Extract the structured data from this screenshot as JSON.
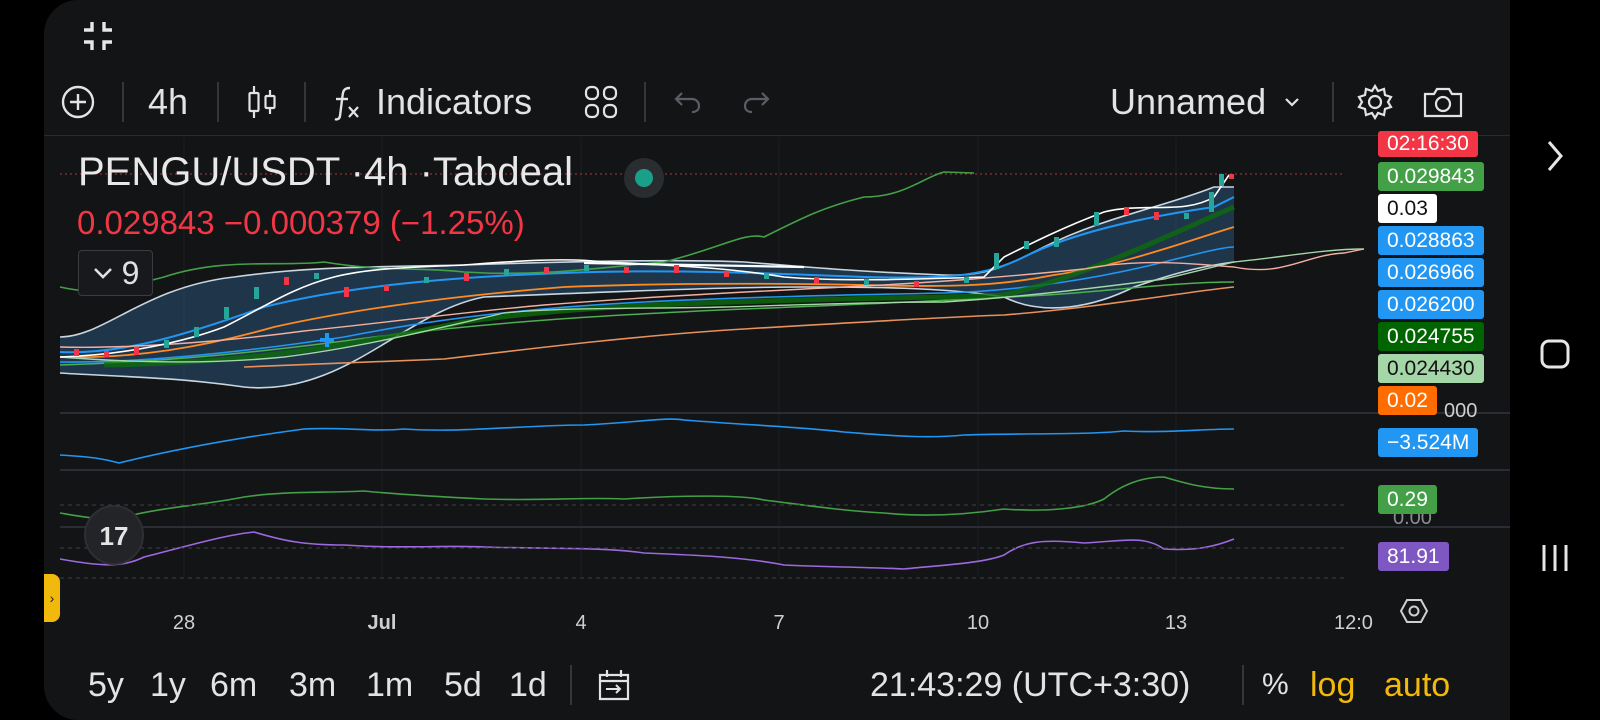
{
  "toolbar": {
    "interval": "4h",
    "indicators_label": "Indicators",
    "layout_name": "Unnamed",
    "colors": {
      "fg": "#e3e3e3",
      "disabled": "#5a5d63"
    }
  },
  "legend": {
    "symbol": "PENGU/USDT",
    "interval": "4h",
    "exchange": "Tabdeal",
    "separator": "·",
    "price": "0.029843",
    "change": "−0.000379",
    "change_pct": "(−1.25%)",
    "collapsed_count": "9",
    "colors": {
      "down": "#f23645",
      "status": "#1aa08a"
    }
  },
  "price_tags": [
    {
      "text": "02:16:30",
      "bg": "#f23645",
      "fg": "#ffffff"
    },
    {
      "text": "0.029843",
      "bg": "#43a047",
      "fg": "#ffffff"
    },
    {
      "text": "0.03",
      "bg": "#ffffff",
      "fg": "#111111"
    },
    {
      "text": "0.028863",
      "bg": "#2196f3",
      "fg": "#ffffff"
    },
    {
      "text": "0.026966",
      "bg": "#2196f3",
      "fg": "#ffffff"
    },
    {
      "text": "0.026200",
      "bg": "#2196f3",
      "fg": "#ffffff"
    },
    {
      "text": "0.024755",
      "bg": "#006400",
      "fg": "#ffffff"
    },
    {
      "text": "0.024430",
      "bg": "#a5d6a7",
      "fg": "#111111"
    },
    {
      "text": "0.02",
      "bg": "#ff6d00",
      "fg": "#ffffff"
    }
  ],
  "partial_scale_label": "000",
  "panes": {
    "volume_tag": {
      "text": "−3.524M",
      "bg": "#2196f3",
      "fg": "#ffffff"
    },
    "osc_tag": {
      "text": "0.29",
      "bg": "#43a047",
      "fg": "#ffffff"
    },
    "osc_zero": "0.00",
    "rsi_tag": {
      "text": "81.91",
      "bg": "#7e57c2",
      "fg": "#ffffff"
    }
  },
  "logo_text": "17",
  "xaxis": {
    "ticks": [
      "28",
      "Jul",
      "4",
      "7",
      "10",
      "13",
      "12:0"
    ]
  },
  "bottom": {
    "ranges": [
      "5y",
      "1y",
      "6m",
      "3m",
      "1m",
      "5d",
      "1d"
    ],
    "clock": "21:43:29 (UTC+3:30)",
    "percent": "%",
    "log": "log",
    "auto": "auto",
    "accent": "#f2b90d"
  },
  "icons": {
    "exit_fullscreen": "exit-fullscreen-icon",
    "add": "plus-circle-icon",
    "chart_type": "candles-icon",
    "indicators": "fx-icon",
    "templates": "grid-icon",
    "undo": "undo-icon",
    "redo": "redo-icon",
    "settings": "gear-icon",
    "snapshot": "camera-icon",
    "go_to_date": "calendar-icon",
    "scale_settings": "axis-settings-icon",
    "nav_forward": "chevron-right-icon",
    "nav_home": "home-square-icon",
    "nav_recents": "recents-icon"
  }
}
